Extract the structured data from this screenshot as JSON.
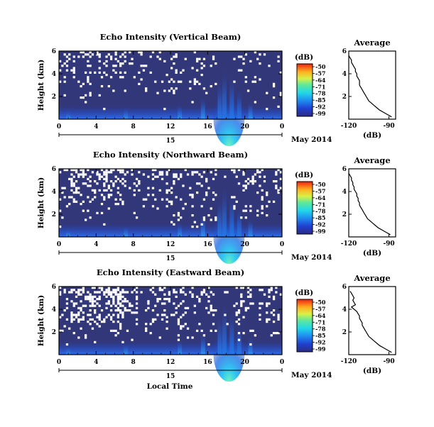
{
  "figure": {
    "date_label": "May 2014",
    "xlabel_bottom": "Local Time"
  },
  "chart_data": [
    {
      "type": "heatmap",
      "title": "Echo Intensity (Vertical Beam)",
      "ylabel": "Height (km)",
      "xlim": [
        0,
        24
      ],
      "ylim": [
        0,
        6
      ],
      "xticks": [
        "0",
        "4",
        "8",
        "12",
        "16",
        "20",
        "0"
      ],
      "yticks": [
        "2",
        "4",
        "6"
      ],
      "day_label": "15",
      "date_label": "May 2014",
      "colorbar": {
        "unit": "(dB)",
        "ticks": [
          "-50",
          "-57",
          "-64",
          "-71",
          "-78",
          "-85",
          "-92",
          "-99"
        ]
      },
      "gap_density": 0.12,
      "average_profile": {
        "title": "Average",
        "xlabel": "(dB)",
        "xlim": [
          -120,
          -85
        ],
        "xticks": [
          "-120",
          "-90"
        ],
        "yticks": [
          "2",
          "4",
          "6"
        ],
        "height": [
          0.2,
          0.4,
          0.6,
          0.8,
          1.0,
          1.2,
          1.4,
          1.6,
          1.8,
          2.0,
          2.2,
          2.4,
          2.6,
          2.8,
          3.0,
          3.2,
          3.4,
          3.6,
          3.8,
          4.0,
          4.2,
          4.4,
          4.6,
          4.8,
          5.0,
          5.2,
          5.4,
          5.6
        ],
        "value": [
          -88,
          -91,
          -94,
          -97,
          -99,
          -101,
          -103,
          -105,
          -106,
          -107,
          -108,
          -109,
          -110,
          -111,
          -112,
          -112,
          -112,
          -113,
          -114,
          -114,
          -115,
          -115,
          -116,
          -117,
          -118,
          -118,
          -119,
          -120
        ]
      }
    },
    {
      "type": "heatmap",
      "title": "Echo Intensity (Northward Beam)",
      "ylabel": "Height (km)",
      "xlim": [
        0,
        24
      ],
      "ylim": [
        0,
        6
      ],
      "xticks": [
        "0",
        "4",
        "8",
        "12",
        "16",
        "20",
        "0"
      ],
      "yticks": [
        "2",
        "4",
        "6"
      ],
      "day_label": "15",
      "date_label": "May 2014",
      "colorbar": {
        "unit": "(dB)",
        "ticks": [
          "-50",
          "-57",
          "-64",
          "-71",
          "-78",
          "-85",
          "-92",
          "-99"
        ]
      },
      "gap_density": 0.2,
      "average_profile": {
        "title": "Average",
        "xlabel": "(dB)",
        "xlim": [
          -120,
          -85
        ],
        "xticks": [
          "-120",
          "-90"
        ],
        "yticks": [
          "2",
          "4",
          "6"
        ],
        "height": [
          0.2,
          0.4,
          0.6,
          0.8,
          1.0,
          1.2,
          1.4,
          1.6,
          1.8,
          2.0,
          2.2,
          2.4,
          2.6,
          2.8,
          3.0,
          3.2,
          3.4,
          3.6,
          3.8,
          4.0,
          4.2,
          4.4,
          4.6,
          4.8,
          5.0,
          5.2,
          5.4,
          5.6
        ],
        "value": [
          -89,
          -92,
          -95,
          -98,
          -100,
          -102,
          -104,
          -106,
          -107,
          -108,
          -109,
          -110,
          -111,
          -112,
          -112,
          -113,
          -113,
          -114,
          -114,
          -115,
          -116,
          -116,
          -117,
          -117,
          -118,
          -118,
          -119,
          -120
        ]
      }
    },
    {
      "type": "heatmap",
      "title": "Echo Intensity (Eastward Beam)",
      "ylabel": "Height (km)",
      "xlim": [
        0,
        24
      ],
      "ylim": [
        0,
        6
      ],
      "xticks": [
        "0",
        "4",
        "8",
        "12",
        "16",
        "20",
        "0"
      ],
      "yticks": [
        "2",
        "4",
        "6"
      ],
      "day_label": "15",
      "date_label": "May 2014",
      "colorbar": {
        "unit": "(dB)",
        "ticks": [
          "-50",
          "-57",
          "-64",
          "-71",
          "-78",
          "-85",
          "-92",
          "-99"
        ]
      },
      "gap_density": 0.24,
      "average_profile": {
        "title": "Average",
        "xlabel": "(dB)",
        "xlim": [
          -120,
          -85
        ],
        "xticks": [
          "-120",
          "-90"
        ],
        "yticks": [
          "2",
          "4",
          "6"
        ],
        "height": [
          0.2,
          0.4,
          0.6,
          0.8,
          1.0,
          1.2,
          1.4,
          1.6,
          1.8,
          2.0,
          2.2,
          2.4,
          2.6,
          2.8,
          3.0,
          3.2,
          3.4,
          3.6,
          3.8,
          4.0,
          4.2,
          4.4,
          4.6,
          4.8,
          5.0,
          5.2,
          5.4,
          5.6
        ],
        "value": [
          -88,
          -91,
          -94,
          -97,
          -99,
          -101,
          -103,
          -105,
          -106,
          -107,
          -108,
          -109,
          -110,
          -110,
          -111,
          -112,
          -112,
          -113,
          -114,
          -116,
          -118,
          -115,
          -116,
          -117,
          -116,
          -117,
          -118,
          -119
        ]
      }
    }
  ]
}
